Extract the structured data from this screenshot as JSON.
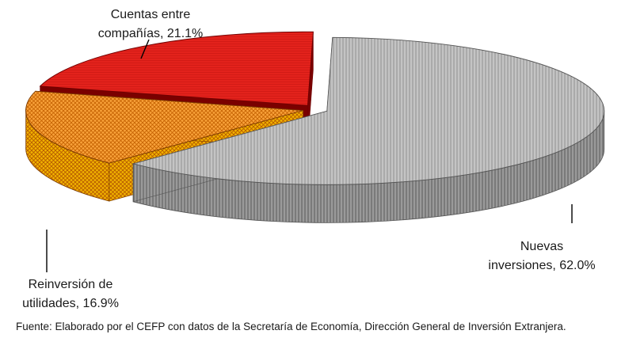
{
  "chart_data": {
    "type": "pie",
    "style": "3d-exploded",
    "title": "",
    "slices": [
      {
        "label_lines": [
          "Nuevas",
          "inversiones, 62.0%"
        ],
        "category": "Nuevas inversiones",
        "value": 62.0,
        "color": "#bdbdbd",
        "pattern": "vertical-lines"
      },
      {
        "label_lines": [
          "Reinversión de",
          "utilidades, 16.9%"
        ],
        "category": "Reinversión de utilidades",
        "value": 16.9,
        "color": "#f7941d",
        "pattern": "crosshatch"
      },
      {
        "label_lines": [
          "Cuentas entre",
          "compañías, 21.1%"
        ],
        "category": "Cuentas entre compañías",
        "value": 21.1,
        "color": "#e0201b",
        "pattern": "fine-lines"
      }
    ],
    "legend": "none"
  },
  "footer": {
    "source": "Fuente: Elaborado por el CEFP con datos de la Secretaría de Economía, Dirección General de Inversión Extranjera."
  }
}
